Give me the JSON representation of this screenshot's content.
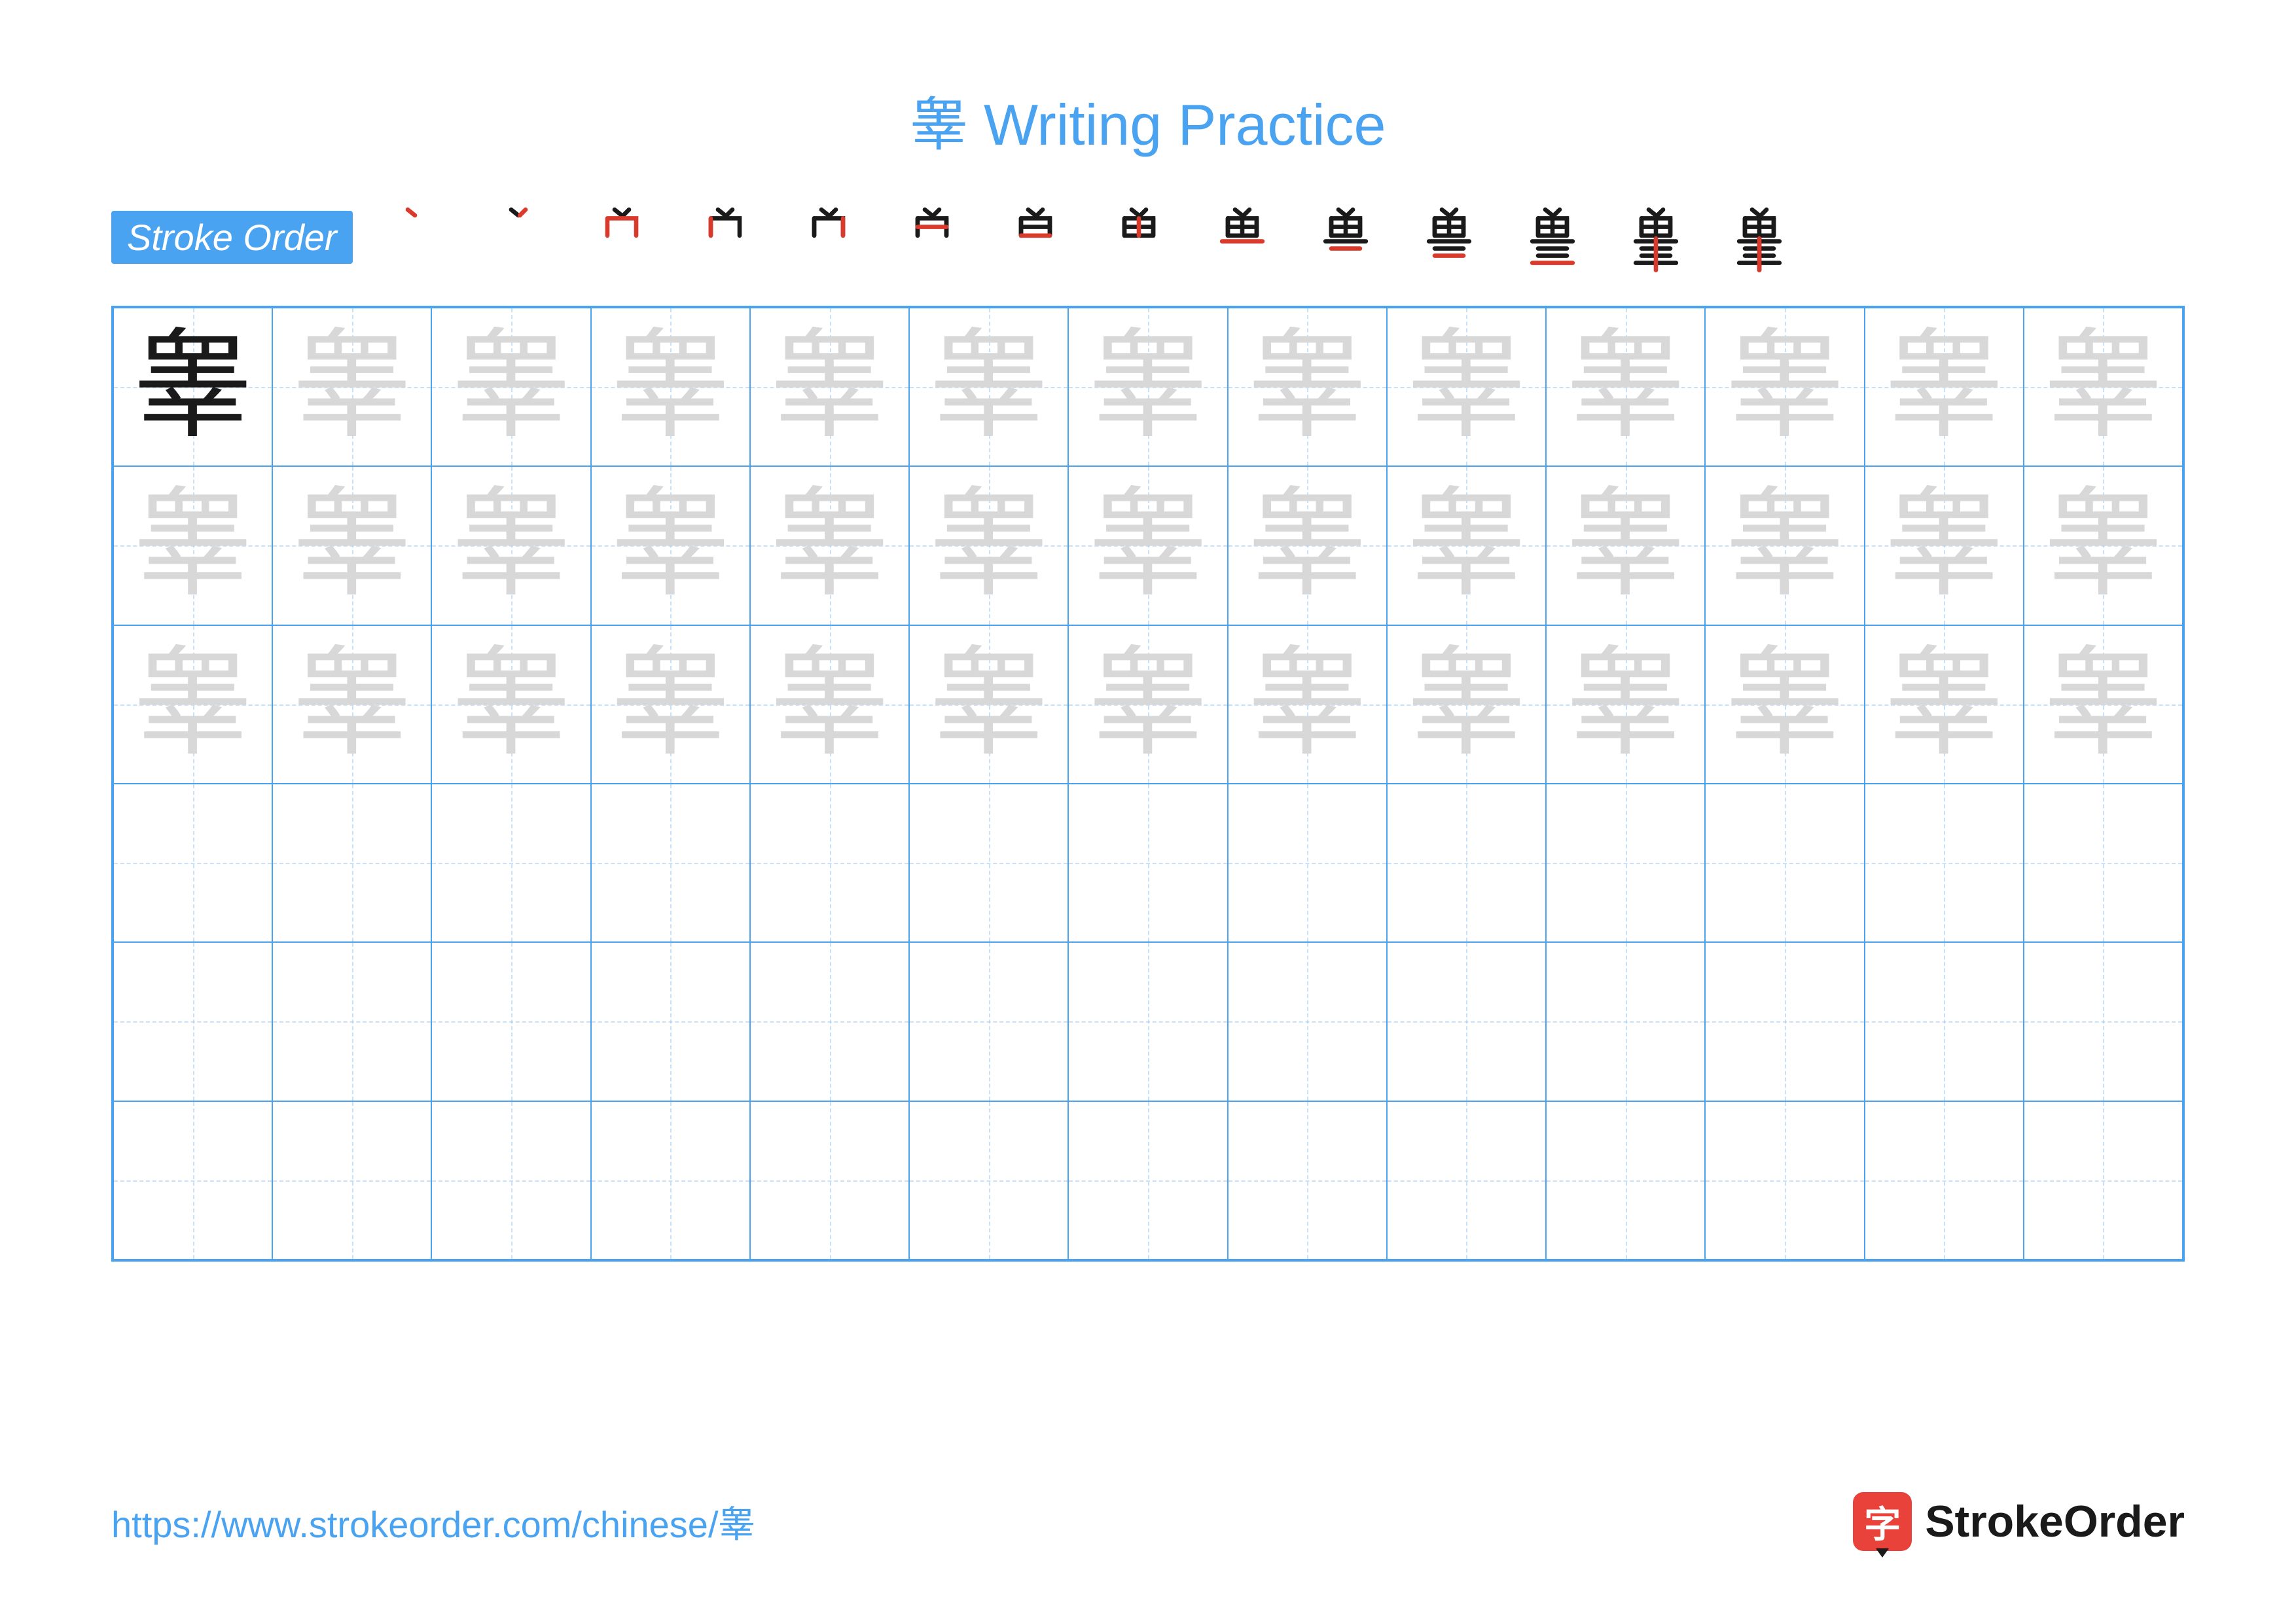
{
  "title": "睾 Writing Practice",
  "stroke_label": "Stroke Order",
  "character": "睾",
  "stroke_count": 14,
  "grid": {
    "cols": 13,
    "rows": 6,
    "trace_rows": 3,
    "blank_rows": 3
  },
  "colors": {
    "primary": "#4aa3f0",
    "title": "#4aa3f0",
    "grid_border": "#4aa3f0",
    "guide_dash": "#9cc9f5",
    "model_char": "#1a1a1a",
    "trace_char": "#d8d8d8",
    "stroke_black": "#1a1a1a",
    "stroke_red": "#d93a2b",
    "url": "#4aa3f0",
    "brand_icon_bg": "#e8423a",
    "background": "#ffffff"
  },
  "typography": {
    "title_size": 88,
    "label_size": 56,
    "char_size": 180,
    "url_size": 56,
    "brand_size": 68
  },
  "footer": {
    "url": "https://www.strokeorder.com/chinese/睾",
    "brand_name": "StrokeOrder",
    "brand_glyph": "字"
  }
}
